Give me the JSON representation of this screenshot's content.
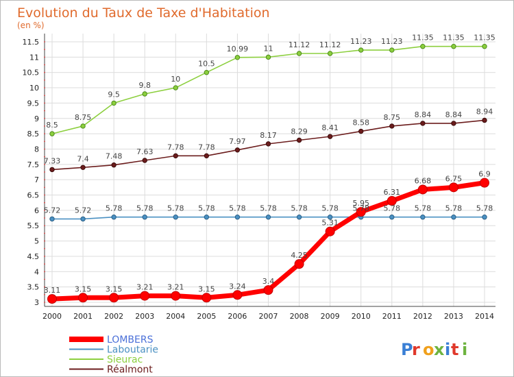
{
  "chart_data": {
    "type": "line",
    "title": "Evolution du Taux de Taxe d'Habitation",
    "subtitle": "(en %)",
    "x": [
      "2000",
      "2001",
      "2002",
      "2003",
      "2004",
      "2005",
      "2006",
      "2007",
      "2008",
      "2009",
      "2010",
      "2011",
      "2012",
      "2013",
      "2014"
    ],
    "ylim": [
      3,
      11.5
    ],
    "yticks": [
      "3",
      "3.5",
      "4",
      "4.5",
      "5",
      "5.5",
      "6",
      "6.5",
      "7",
      "7.5",
      "8",
      "8.5",
      "9",
      "9.5",
      "10",
      "10.5",
      "11",
      "11.5"
    ],
    "grid": true,
    "legend_position": "bottom-left",
    "series": [
      {
        "name": "LOMBERS",
        "color": "#ff0000",
        "values": [
          3.11,
          3.15,
          3.15,
          3.21,
          3.21,
          3.15,
          3.24,
          3.4,
          4.25,
          5.31,
          5.95,
          6.31,
          6.68,
          6.75,
          6.9
        ],
        "labels": [
          "3.11",
          "3.15",
          "3.15",
          "3.21",
          "3.21",
          "3.15",
          "3.24",
          "3.4",
          "4.25",
          "5.31",
          "5.95",
          "6.31",
          "6.68",
          "6.75",
          "6.9"
        ]
      },
      {
        "name": "Laboutarie",
        "color": "#4a90c2",
        "values": [
          5.72,
          5.72,
          5.78,
          5.78,
          5.78,
          5.78,
          5.78,
          5.78,
          5.78,
          5.78,
          5.78,
          5.78,
          5.78,
          5.78,
          5.78
        ],
        "labels": [
          "5.72",
          "5.72",
          "5.78",
          "5.78",
          "5.78",
          "5.78",
          "5.78",
          "5.78",
          "5.78",
          "5.78",
          "5.78",
          "5.78",
          "5.78",
          "5.78",
          "5.78"
        ]
      },
      {
        "name": "Sieurac",
        "color": "#8ccf3e",
        "values": [
          8.5,
          8.75,
          9.5,
          9.8,
          10,
          10.5,
          10.99,
          11,
          11.12,
          11.12,
          11.23,
          11.23,
          11.35,
          11.35,
          11.35
        ],
        "labels": [
          "8.5",
          "8.75",
          "9.5",
          "9.8",
          "10",
          "10.5",
          "10.99",
          "11",
          "11.12",
          "11.12",
          "11.23",
          "11.23",
          "11.35",
          "11.35",
          "11.35"
        ]
      },
      {
        "name": "Réalmont",
        "color": "#6b1c1c",
        "values": [
          7.33,
          7.4,
          7.48,
          7.63,
          7.78,
          7.78,
          7.97,
          8.17,
          8.29,
          8.41,
          8.58,
          8.75,
          8.84,
          8.84,
          8.94
        ],
        "labels": [
          "7.33",
          "7.4",
          "7.48",
          "7.63",
          "7.78",
          "7.78",
          "7.97",
          "8.17",
          "8.29",
          "8.41",
          "8.58",
          "8.75",
          "8.84",
          "8.84",
          "8.94"
        ]
      }
    ]
  },
  "logo": {
    "text": "Proxiti",
    "colors": [
      "#3a7fd5",
      "#e0392b",
      "#f0a01c",
      "#6db33f",
      "#3a7fd5",
      "#e0392b",
      "#6db33f"
    ]
  }
}
